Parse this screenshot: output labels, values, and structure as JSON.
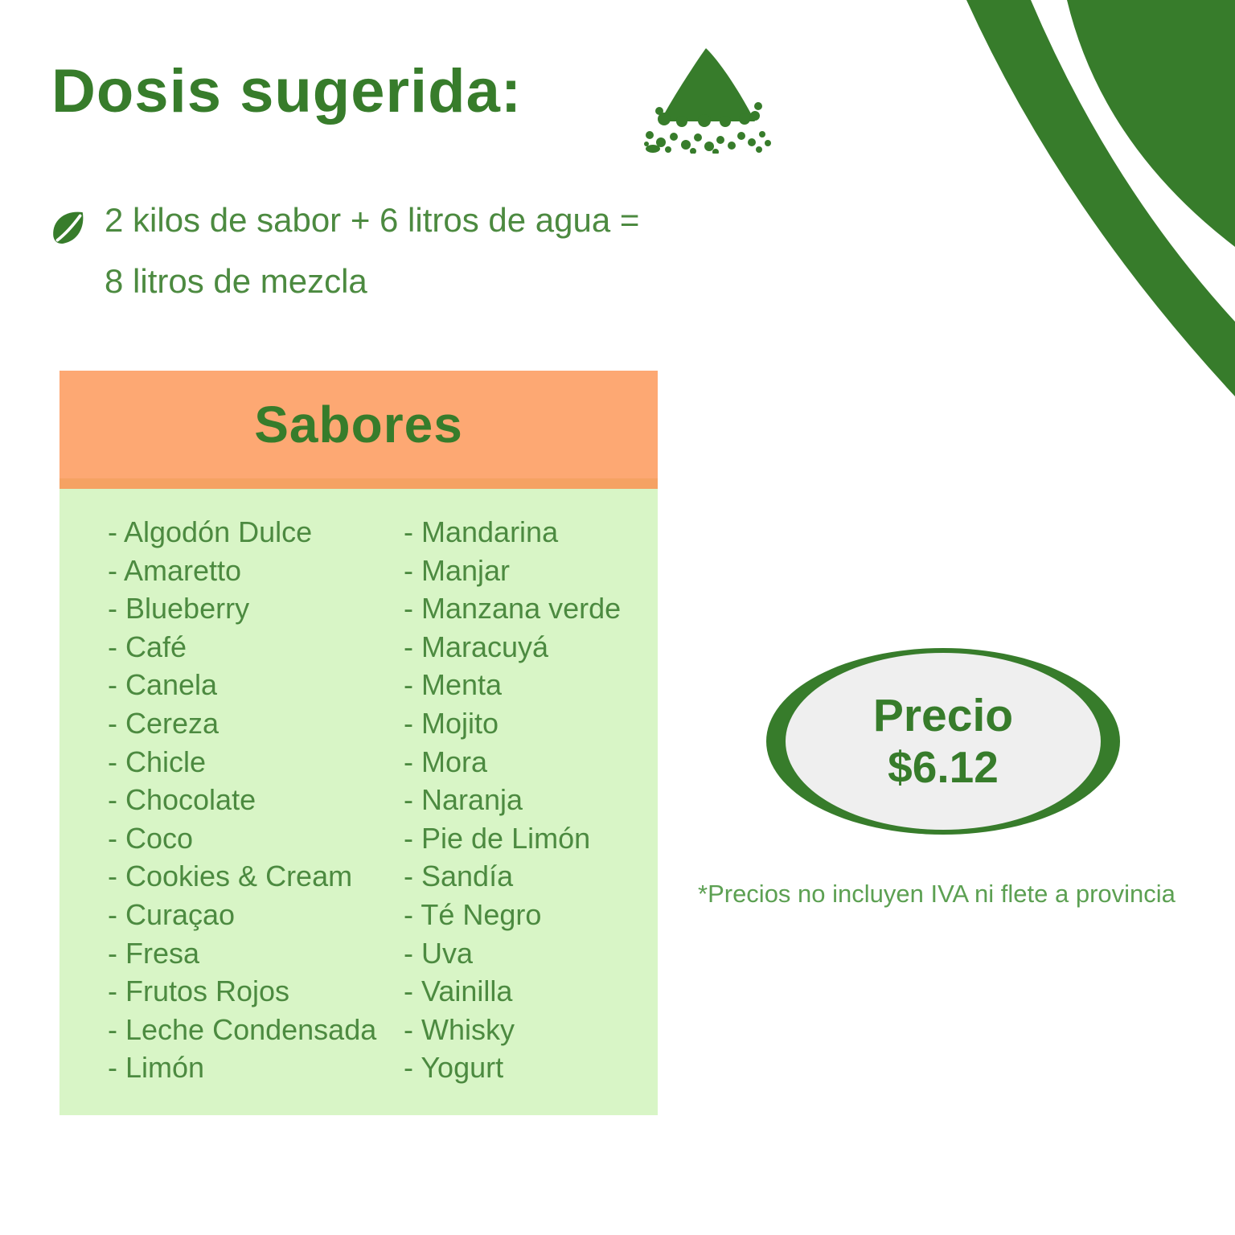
{
  "title": "Dosis sugerida:",
  "dosage": {
    "line1": "2 kilos de sabor + 6 litros de agua =",
    "line2": "8 litros de mezcla"
  },
  "flavors_card": {
    "header": "Sabores",
    "item_prefix": "- ",
    "column_left": [
      "Algodón Dulce",
      "Amaretto",
      "Blueberry",
      "Café",
      "Canela",
      "Cereza",
      "Chicle",
      "Chocolate",
      "Coco",
      "Cookies & Cream",
      "Curaçao",
      "Fresa",
      "Frutos Rojos",
      "Leche Condensada",
      "Limón"
    ],
    "column_right": [
      "Mandarina",
      "Manjar",
      "Manzana verde",
      "Maracuyá",
      "Menta",
      "Mojito",
      "Mora",
      "Naranja",
      "Pie de Limón",
      "Sandía",
      "Té Negro",
      "Uva",
      "Vainilla",
      "Whisky",
      "Yogurt"
    ]
  },
  "price_badge": {
    "label": "Precio",
    "value": "$6.12"
  },
  "footnote": "*Precios no incluyen IVA ni flete a provincia",
  "icons": {
    "powder_pile": "powder-pile-icon",
    "leaf_bullet": "leaf-icon",
    "corner_decoration": "corner-decoration"
  },
  "colors": {
    "deep_green": "#377c2b",
    "text_green": "#4c8a40",
    "footnote_green": "#5ca052",
    "header_orange": "#fda873",
    "header_strip_orange": "#f5a263",
    "body_light_green": "#d8f5c6",
    "badge_inner_gray": "#efefef",
    "background": "#ffffff"
  }
}
